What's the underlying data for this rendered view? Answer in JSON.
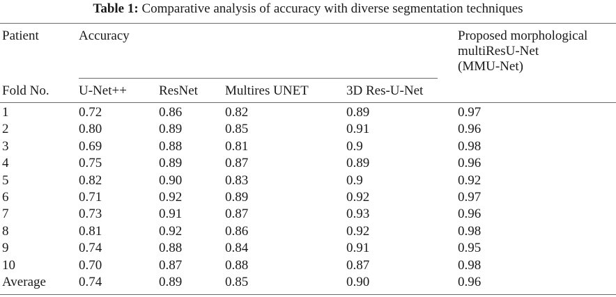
{
  "caption": {
    "label": "Table 1:",
    "text": "Comparative analysis of accuracy with diverse segmentation techniques"
  },
  "header": {
    "patient": "Patient",
    "fold_no": "Fold No.",
    "accuracy": "Accuracy",
    "unet_pp": "U-Net++",
    "resnet": "ResNet",
    "multires_unet": "Multires UNET",
    "res_unet_3d": "3D Res-U-Net",
    "proposed": [
      "Proposed morphological",
      "multiResU-Net",
      "(MMU-Net)"
    ]
  },
  "rows": [
    [
      "1",
      "0.72",
      "0.86",
      "0.82",
      "0.89",
      "0.97"
    ],
    [
      "2",
      "0.80",
      "0.89",
      "0.85",
      "0.91",
      "0.96"
    ],
    [
      "3",
      "0.69",
      "0.88",
      "0.81",
      "0.9",
      "0.98"
    ],
    [
      "4",
      "0.75",
      "0.89",
      "0.87",
      "0.89",
      "0.96"
    ],
    [
      "5",
      "0.82",
      "0.90",
      "0.83",
      "0.9",
      "0.92"
    ],
    [
      "6",
      "0.71",
      "0.92",
      "0.89",
      "0.92",
      "0.97"
    ],
    [
      "7",
      "0.73",
      "0.91",
      "0.87",
      "0.93",
      "0.96"
    ],
    [
      "8",
      "0.81",
      "0.92",
      "0.86",
      "0.92",
      "0.98"
    ],
    [
      "9",
      "0.74",
      "0.88",
      "0.84",
      "0.91",
      "0.95"
    ],
    [
      "10",
      "0.70",
      "0.87",
      "0.88",
      "0.87",
      "0.98"
    ],
    [
      "Average",
      "0.74",
      "0.89",
      "0.85",
      "0.90",
      "0.96"
    ]
  ]
}
